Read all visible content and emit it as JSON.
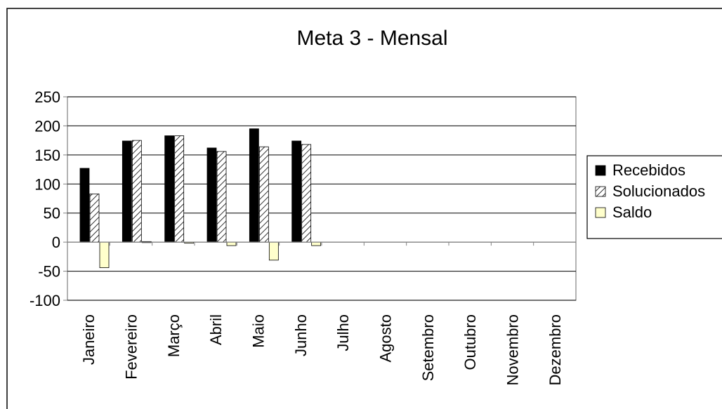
{
  "chart_data": {
    "type": "bar",
    "title": "Meta 3 - Mensal",
    "xlabel": "",
    "ylabel": "",
    "categories": [
      "Janeiro",
      "Fevereiro",
      "Março",
      "Abril",
      "Maio",
      "Junho",
      "Julho",
      "Agosto",
      "Setembro",
      "Outubro",
      "Novembro",
      "Dezembro"
    ],
    "series": [
      {
        "name": "Recebidos",
        "values": [
          127,
          174,
          183,
          162,
          195,
          174,
          null,
          null,
          null,
          null,
          null,
          null
        ],
        "color": "#000000",
        "pattern": "solid"
      },
      {
        "name": "Solucionados",
        "values": [
          83,
          175,
          183,
          156,
          164,
          168,
          null,
          null,
          null,
          null,
          null,
          null
        ],
        "color": "#ffffff",
        "pattern": "hatch"
      },
      {
        "name": "Saldo",
        "values": [
          -44,
          1,
          0,
          -6,
          -31,
          -6,
          null,
          null,
          null,
          null,
          null,
          null
        ],
        "color": "#ffffcc",
        "pattern": "solid"
      }
    ],
    "ylim": [
      -100,
      250
    ],
    "yticks": [
      -100,
      -50,
      0,
      50,
      100,
      150,
      200,
      250
    ],
    "grid": true,
    "legend_position": "right"
  }
}
